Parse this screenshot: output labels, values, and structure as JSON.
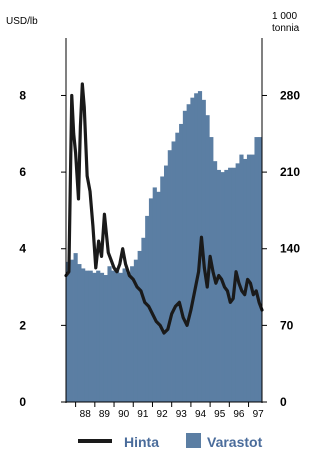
{
  "chart_data": {
    "type": "bar+line",
    "left_axis": {
      "label": "USD/lb",
      "ticks": [
        0,
        2,
        4,
        6,
        8
      ],
      "range": [
        0,
        9.5
      ]
    },
    "right_axis": {
      "label_line1": "1 000",
      "label_line2": "tonnia",
      "ticks": [
        0,
        70,
        140,
        210,
        280
      ],
      "range": [
        0,
        332.5
      ]
    },
    "x_tick_labels": [
      "88",
      "89",
      "90",
      "91",
      "92",
      "93",
      "94",
      "95",
      "96",
      "97"
    ],
    "x_range": [
      1987.5,
      1997.7
    ],
    "grid": false,
    "colors": {
      "bars": "#5b7ea3",
      "line": "#1a1a1a",
      "legend_text": "#4a6c9b"
    },
    "legend": {
      "placement": "bottom",
      "items": [
        {
          "label": "Hinta",
          "kind": "line"
        },
        {
          "label": "Varastot",
          "kind": "bar"
        }
      ]
    },
    "series": [
      {
        "name": "Varastot",
        "axis": "right",
        "kind": "bar",
        "x": [
          1987.5,
          1987.7,
          1987.9,
          1988.1,
          1988.3,
          1988.5,
          1988.7,
          1988.9,
          1989.1,
          1989.3,
          1989.5,
          1989.7,
          1989.9,
          1990.1,
          1990.3,
          1990.5,
          1990.7,
          1990.9,
          1991.1,
          1991.3,
          1991.5,
          1991.7,
          1991.9,
          1992.1,
          1992.3,
          1992.5,
          1992.7,
          1992.9,
          1993.1,
          1993.3,
          1993.5,
          1993.7,
          1993.9,
          1994.1,
          1994.3,
          1994.5,
          1994.7,
          1994.9,
          1995.1,
          1995.3,
          1995.5,
          1995.7,
          1995.9,
          1996.1,
          1996.3,
          1996.5,
          1996.7,
          1996.9,
          1997.1,
          1997.3,
          1997.5,
          1997.7
        ],
        "values": [
          128,
          130,
          136,
          126,
          122,
          120,
          120,
          118,
          120,
          118,
          116,
          124,
          120,
          122,
          118,
          122,
          118,
          124,
          130,
          138,
          150,
          170,
          186,
          196,
          192,
          206,
          216,
          230,
          238,
          246,
          254,
          266,
          272,
          278,
          282,
          284,
          276,
          262,
          242,
          220,
          212,
          210,
          212,
          214,
          214,
          218,
          226,
          222,
          226,
          226,
          242,
          242
        ]
      },
      {
        "name": "Hinta",
        "axis": "left",
        "kind": "line",
        "x": [
          1987.5,
          1987.65,
          1987.8,
          1987.9,
          1988.0,
          1988.15,
          1988.25,
          1988.35,
          1988.45,
          1988.6,
          1988.75,
          1988.9,
          1989.05,
          1989.2,
          1989.35,
          1989.5,
          1989.7,
          1989.85,
          1990.0,
          1990.15,
          1990.3,
          1990.45,
          1990.6,
          1990.8,
          1991.0,
          1991.2,
          1991.4,
          1991.6,
          1991.8,
          1992.0,
          1992.2,
          1992.4,
          1992.6,
          1992.8,
          1993.0,
          1993.2,
          1993.4,
          1993.6,
          1993.8,
          1994.0,
          1994.2,
          1994.4,
          1994.55,
          1994.7,
          1994.85,
          1995.0,
          1995.15,
          1995.3,
          1995.45,
          1995.6,
          1995.75,
          1995.9,
          1996.05,
          1996.2,
          1996.35,
          1996.5,
          1996.65,
          1996.8,
          1996.95,
          1997.1,
          1997.25,
          1997.4,
          1997.55,
          1997.7
        ],
        "values": [
          3.3,
          3.4,
          8.0,
          7.0,
          6.5,
          5.3,
          7.2,
          8.3,
          7.7,
          5.9,
          5.5,
          4.6,
          3.5,
          4.2,
          3.8,
          4.9,
          3.9,
          3.7,
          3.5,
          3.4,
          3.6,
          4.0,
          3.6,
          3.3,
          3.2,
          3.0,
          2.9,
          2.6,
          2.5,
          2.3,
          2.1,
          2.0,
          1.8,
          1.9,
          2.3,
          2.5,
          2.6,
          2.2,
          2.0,
          2.4,
          2.9,
          3.4,
          4.3,
          3.5,
          3.0,
          3.8,
          3.4,
          3.1,
          3.3,
          3.2,
          3.0,
          2.9,
          2.6,
          2.7,
          3.4,
          3.1,
          2.9,
          2.8,
          3.2,
          3.1,
          2.8,
          2.9,
          2.6,
          2.4
        ]
      }
    ]
  }
}
